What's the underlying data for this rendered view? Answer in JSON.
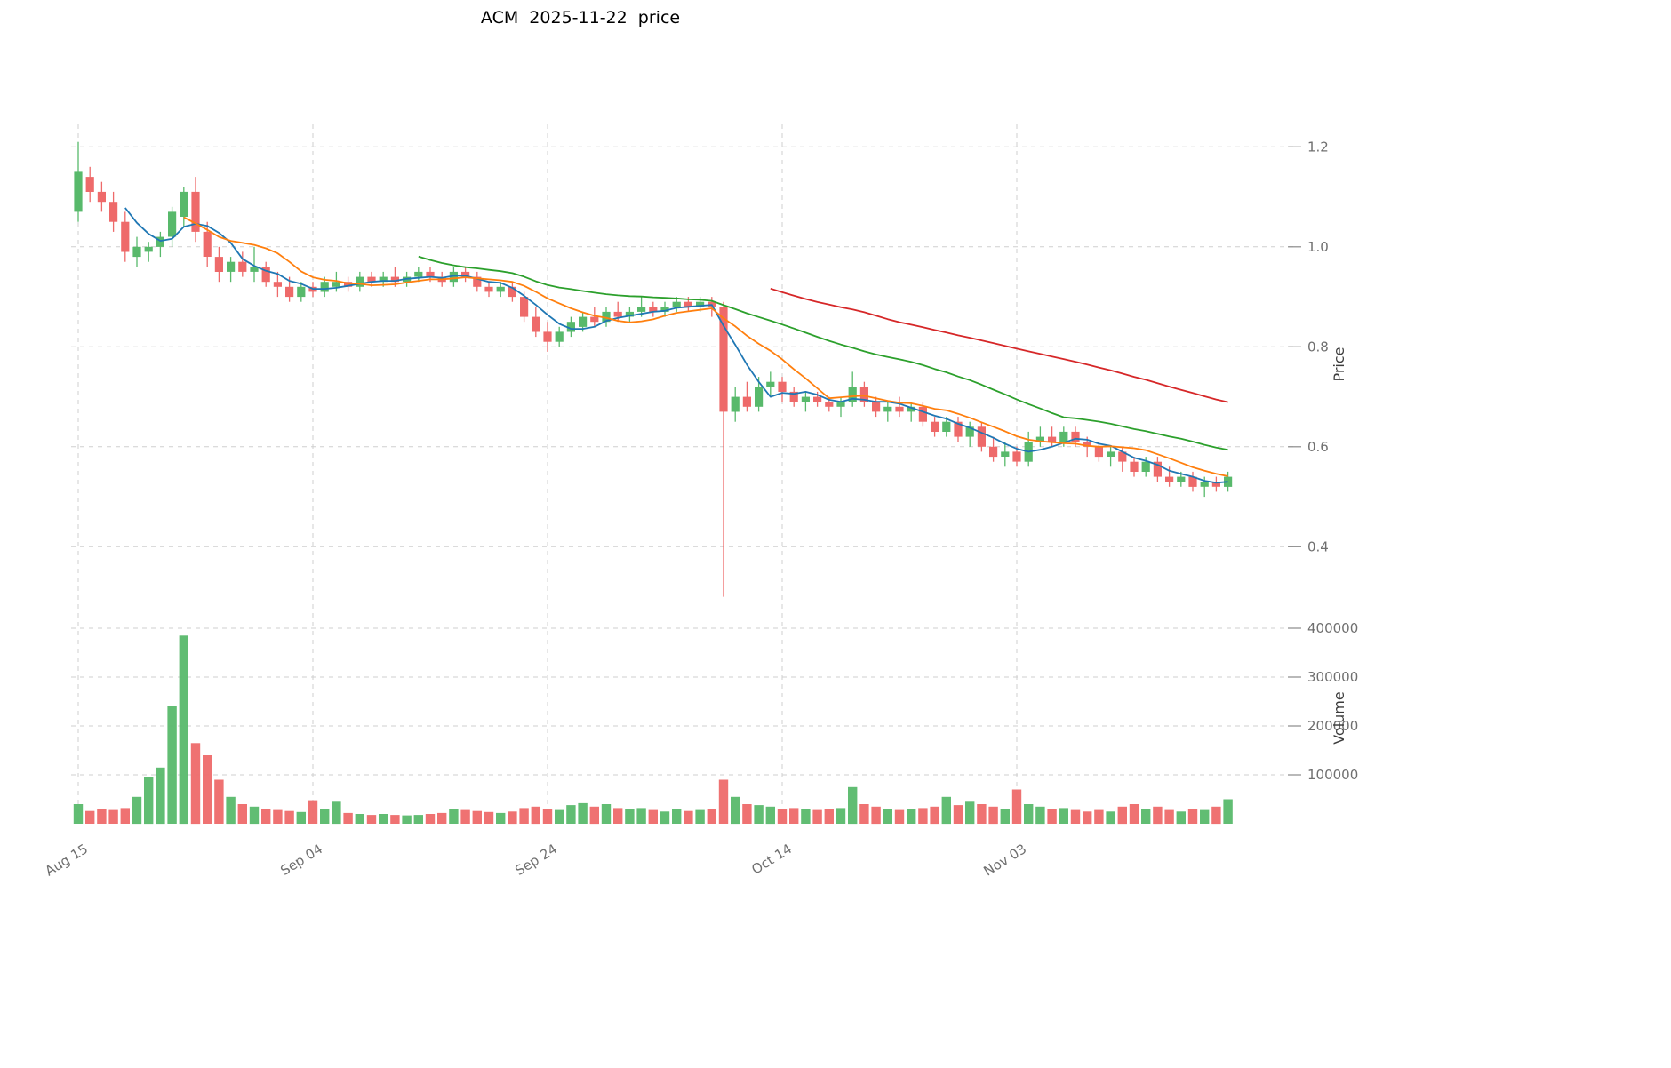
{
  "header": {
    "symbol": "ACM",
    "date": "2025-11-22"
  },
  "chart_data": {
    "type": "candlestick",
    "title": "ACM  2025-11-22  price",
    "frequency": "daily",
    "start_date": "2025-08-15",
    "end_date": "2025-11-21",
    "price_axis_label": "Price",
    "volume_axis_label": "Volume",
    "grid": "dashed",
    "legend_position": "none",
    "up_color": "#58b96b",
    "down_color": "#ee6a6a",
    "ma_windows": [
      5,
      10,
      30,
      60
    ],
    "ma_colors": [
      "#1f77b4",
      "#ff7f0e",
      "#2ca02c",
      "#d62728"
    ],
    "price_ticks": [
      {
        "value": 0.4,
        "label": "0.4"
      },
      {
        "value": 0.6,
        "label": "0.6"
      },
      {
        "value": 0.8,
        "label": "0.8"
      },
      {
        "value": 1.0,
        "label": "1.0"
      },
      {
        "value": 1.2,
        "label": "1.2"
      }
    ],
    "volume_ticks": [
      {
        "value": 100000,
        "label": "100000"
      },
      {
        "value": 200000,
        "label": "200000"
      },
      {
        "value": 300000,
        "label": "300000"
      },
      {
        "value": 400000,
        "label": "400000"
      }
    ],
    "x_ticks": [
      {
        "day": 0,
        "label": "Aug 15"
      },
      {
        "day": 20,
        "label": "Sep 04"
      },
      {
        "day": 40,
        "label": "Sep 24"
      },
      {
        "day": 60,
        "label": "Oct 14"
      },
      {
        "day": 80,
        "label": "Nov 03"
      }
    ],
    "price_ylim": [
      0.285,
      1.245
    ],
    "volume_ylim": [
      0,
      431000
    ],
    "ohlc_order": "open,high,low,close",
    "ohlc": [
      [
        1.07,
        1.21,
        1.05,
        1.15
      ],
      [
        1.14,
        1.16,
        1.09,
        1.11
      ],
      [
        1.11,
        1.13,
        1.07,
        1.09
      ],
      [
        1.09,
        1.11,
        1.03,
        1.05
      ],
      [
        1.05,
        1.07,
        0.97,
        0.99
      ],
      [
        0.98,
        1.02,
        0.96,
        1.0
      ],
      [
        0.99,
        1.01,
        0.97,
        1.0
      ],
      [
        1.0,
        1.03,
        0.98,
        1.02
      ],
      [
        1.02,
        1.08,
        1.0,
        1.07
      ],
      [
        1.06,
        1.12,
        1.04,
        1.11
      ],
      [
        1.11,
        1.14,
        1.01,
        1.03
      ],
      [
        1.03,
        1.05,
        0.96,
        0.98
      ],
      [
        0.98,
        1.0,
        0.93,
        0.95
      ],
      [
        0.95,
        0.98,
        0.93,
        0.97
      ],
      [
        0.97,
        0.99,
        0.94,
        0.95
      ],
      [
        0.95,
        1.0,
        0.93,
        0.96
      ],
      [
        0.96,
        0.97,
        0.92,
        0.93
      ],
      [
        0.93,
        0.95,
        0.9,
        0.92
      ],
      [
        0.92,
        0.94,
        0.89,
        0.9
      ],
      [
        0.9,
        0.93,
        0.89,
        0.92
      ],
      [
        0.92,
        0.93,
        0.9,
        0.91
      ],
      [
        0.91,
        0.94,
        0.9,
        0.93
      ],
      [
        0.92,
        0.95,
        0.91,
        0.93
      ],
      [
        0.93,
        0.94,
        0.91,
        0.92
      ],
      [
        0.92,
        0.95,
        0.91,
        0.94
      ],
      [
        0.94,
        0.95,
        0.92,
        0.93
      ],
      [
        0.93,
        0.95,
        0.92,
        0.94
      ],
      [
        0.94,
        0.96,
        0.92,
        0.93
      ],
      [
        0.93,
        0.95,
        0.92,
        0.94
      ],
      [
        0.94,
        0.96,
        0.93,
        0.95
      ],
      [
        0.95,
        0.96,
        0.93,
        0.94
      ],
      [
        0.94,
        0.95,
        0.92,
        0.93
      ],
      [
        0.93,
        0.96,
        0.92,
        0.95
      ],
      [
        0.95,
        0.96,
        0.93,
        0.94
      ],
      [
        0.94,
        0.95,
        0.91,
        0.92
      ],
      [
        0.92,
        0.93,
        0.9,
        0.91
      ],
      [
        0.91,
        0.93,
        0.9,
        0.92
      ],
      [
        0.92,
        0.93,
        0.89,
        0.9
      ],
      [
        0.9,
        0.91,
        0.85,
        0.86
      ],
      [
        0.86,
        0.88,
        0.82,
        0.83
      ],
      [
        0.83,
        0.85,
        0.79,
        0.81
      ],
      [
        0.81,
        0.84,
        0.8,
        0.83
      ],
      [
        0.83,
        0.86,
        0.82,
        0.85
      ],
      [
        0.84,
        0.87,
        0.83,
        0.86
      ],
      [
        0.86,
        0.88,
        0.84,
        0.85
      ],
      [
        0.85,
        0.88,
        0.84,
        0.87
      ],
      [
        0.87,
        0.89,
        0.85,
        0.86
      ],
      [
        0.86,
        0.88,
        0.85,
        0.87
      ],
      [
        0.87,
        0.9,
        0.86,
        0.88
      ],
      [
        0.88,
        0.89,
        0.86,
        0.87
      ],
      [
        0.87,
        0.89,
        0.86,
        0.88
      ],
      [
        0.88,
        0.9,
        0.87,
        0.89
      ],
      [
        0.89,
        0.9,
        0.87,
        0.88
      ],
      [
        0.88,
        0.9,
        0.87,
        0.89
      ],
      [
        0.89,
        0.9,
        0.86,
        0.88
      ],
      [
        0.88,
        0.89,
        0.3,
        0.67
      ],
      [
        0.67,
        0.72,
        0.65,
        0.7
      ],
      [
        0.7,
        0.73,
        0.67,
        0.68
      ],
      [
        0.68,
        0.74,
        0.67,
        0.72
      ],
      [
        0.72,
        0.75,
        0.7,
        0.73
      ],
      [
        0.73,
        0.74,
        0.69,
        0.71
      ],
      [
        0.71,
        0.72,
        0.68,
        0.69
      ],
      [
        0.69,
        0.71,
        0.67,
        0.7
      ],
      [
        0.7,
        0.71,
        0.68,
        0.69
      ],
      [
        0.69,
        0.7,
        0.67,
        0.68
      ],
      [
        0.68,
        0.7,
        0.66,
        0.69
      ],
      [
        0.69,
        0.75,
        0.68,
        0.72
      ],
      [
        0.72,
        0.73,
        0.68,
        0.69
      ],
      [
        0.69,
        0.7,
        0.66,
        0.67
      ],
      [
        0.67,
        0.69,
        0.65,
        0.68
      ],
      [
        0.68,
        0.7,
        0.66,
        0.67
      ],
      [
        0.67,
        0.69,
        0.65,
        0.68
      ],
      [
        0.68,
        0.69,
        0.64,
        0.65
      ],
      [
        0.65,
        0.66,
        0.62,
        0.63
      ],
      [
        0.63,
        0.66,
        0.62,
        0.65
      ],
      [
        0.65,
        0.66,
        0.61,
        0.62
      ],
      [
        0.62,
        0.65,
        0.6,
        0.64
      ],
      [
        0.64,
        0.65,
        0.59,
        0.6
      ],
      [
        0.6,
        0.62,
        0.57,
        0.58
      ],
      [
        0.58,
        0.61,
        0.56,
        0.59
      ],
      [
        0.59,
        0.6,
        0.56,
        0.57
      ],
      [
        0.57,
        0.63,
        0.56,
        0.61
      ],
      [
        0.61,
        0.64,
        0.6,
        0.62
      ],
      [
        0.62,
        0.64,
        0.6,
        0.61
      ],
      [
        0.61,
        0.64,
        0.6,
        0.63
      ],
      [
        0.63,
        0.64,
        0.6,
        0.61
      ],
      [
        0.61,
        0.62,
        0.58,
        0.6
      ],
      [
        0.6,
        0.61,
        0.57,
        0.58
      ],
      [
        0.58,
        0.6,
        0.56,
        0.59
      ],
      [
        0.59,
        0.6,
        0.55,
        0.57
      ],
      [
        0.57,
        0.58,
        0.54,
        0.55
      ],
      [
        0.55,
        0.58,
        0.54,
        0.57
      ],
      [
        0.57,
        0.58,
        0.53,
        0.54
      ],
      [
        0.54,
        0.56,
        0.52,
        0.53
      ],
      [
        0.53,
        0.55,
        0.52,
        0.54
      ],
      [
        0.54,
        0.55,
        0.51,
        0.52
      ],
      [
        0.52,
        0.54,
        0.5,
        0.53
      ],
      [
        0.53,
        0.54,
        0.51,
        0.52
      ],
      [
        0.52,
        0.55,
        0.51,
        0.54
      ]
    ],
    "volume": [
      40000,
      26000,
      30000,
      28000,
      32000,
      55000,
      95000,
      115000,
      240000,
      385000,
      165000,
      140000,
      90000,
      55000,
      40000,
      35000,
      30000,
      28000,
      26000,
      24000,
      48000,
      30000,
      45000,
      22000,
      20000,
      18000,
      20000,
      18000,
      17000,
      18000,
      20000,
      22000,
      30000,
      28000,
      26000,
      24000,
      22000,
      25000,
      32000,
      35000,
      30000,
      28000,
      38000,
      42000,
      35000,
      40000,
      32000,
      30000,
      32000,
      28000,
      25000,
      30000,
      26000,
      28000,
      30000,
      90000,
      55000,
      40000,
      38000,
      35000,
      30000,
      32000,
      30000,
      28000,
      30000,
      32000,
      75000,
      40000,
      35000,
      30000,
      28000,
      30000,
      32000,
      35000,
      55000,
      38000,
      45000,
      40000,
      35000,
      30000,
      70000,
      40000,
      35000,
      30000,
      32000,
      28000,
      25000,
      28000,
      25000,
      35000,
      40000,
      30000,
      35000,
      28000,
      25000,
      30000,
      28000,
      35000,
      50000
    ]
  }
}
